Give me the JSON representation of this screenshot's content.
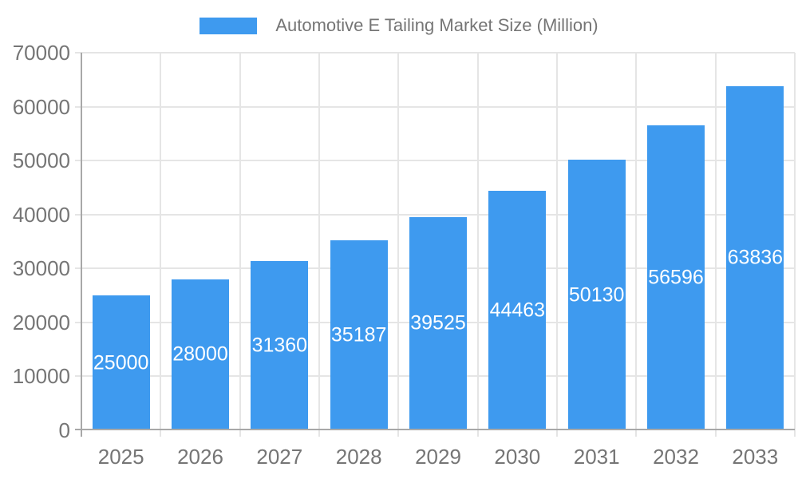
{
  "chart_data": {
    "type": "bar",
    "categories": [
      "2025",
      "2026",
      "2027",
      "2028",
      "2029",
      "2030",
      "2031",
      "2032",
      "2033"
    ],
    "series": [
      {
        "name": "Automotive E Tailing Market Size (Million)",
        "values": [
          25000,
          28000,
          31360,
          35187,
          39525,
          44463,
          50130,
          56596,
          63836
        ],
        "color": "#3E9AEF"
      }
    ],
    "bar_value_labels_shown": true,
    "xlabel": "",
    "ylabel": "",
    "ylim": [
      0,
      70000
    ],
    "yticks": [
      0,
      10000,
      20000,
      30000,
      40000,
      50000,
      60000,
      70000
    ],
    "grid": true,
    "legend_position": "top",
    "styles": {
      "bar_label": "#FFFFFF",
      "axis_text": "#757575",
      "legend_text": "#757575",
      "grid_line": "#E5E5E5",
      "axis_line": "#A8A8A8",
      "background": "#FFFFFF"
    }
  }
}
